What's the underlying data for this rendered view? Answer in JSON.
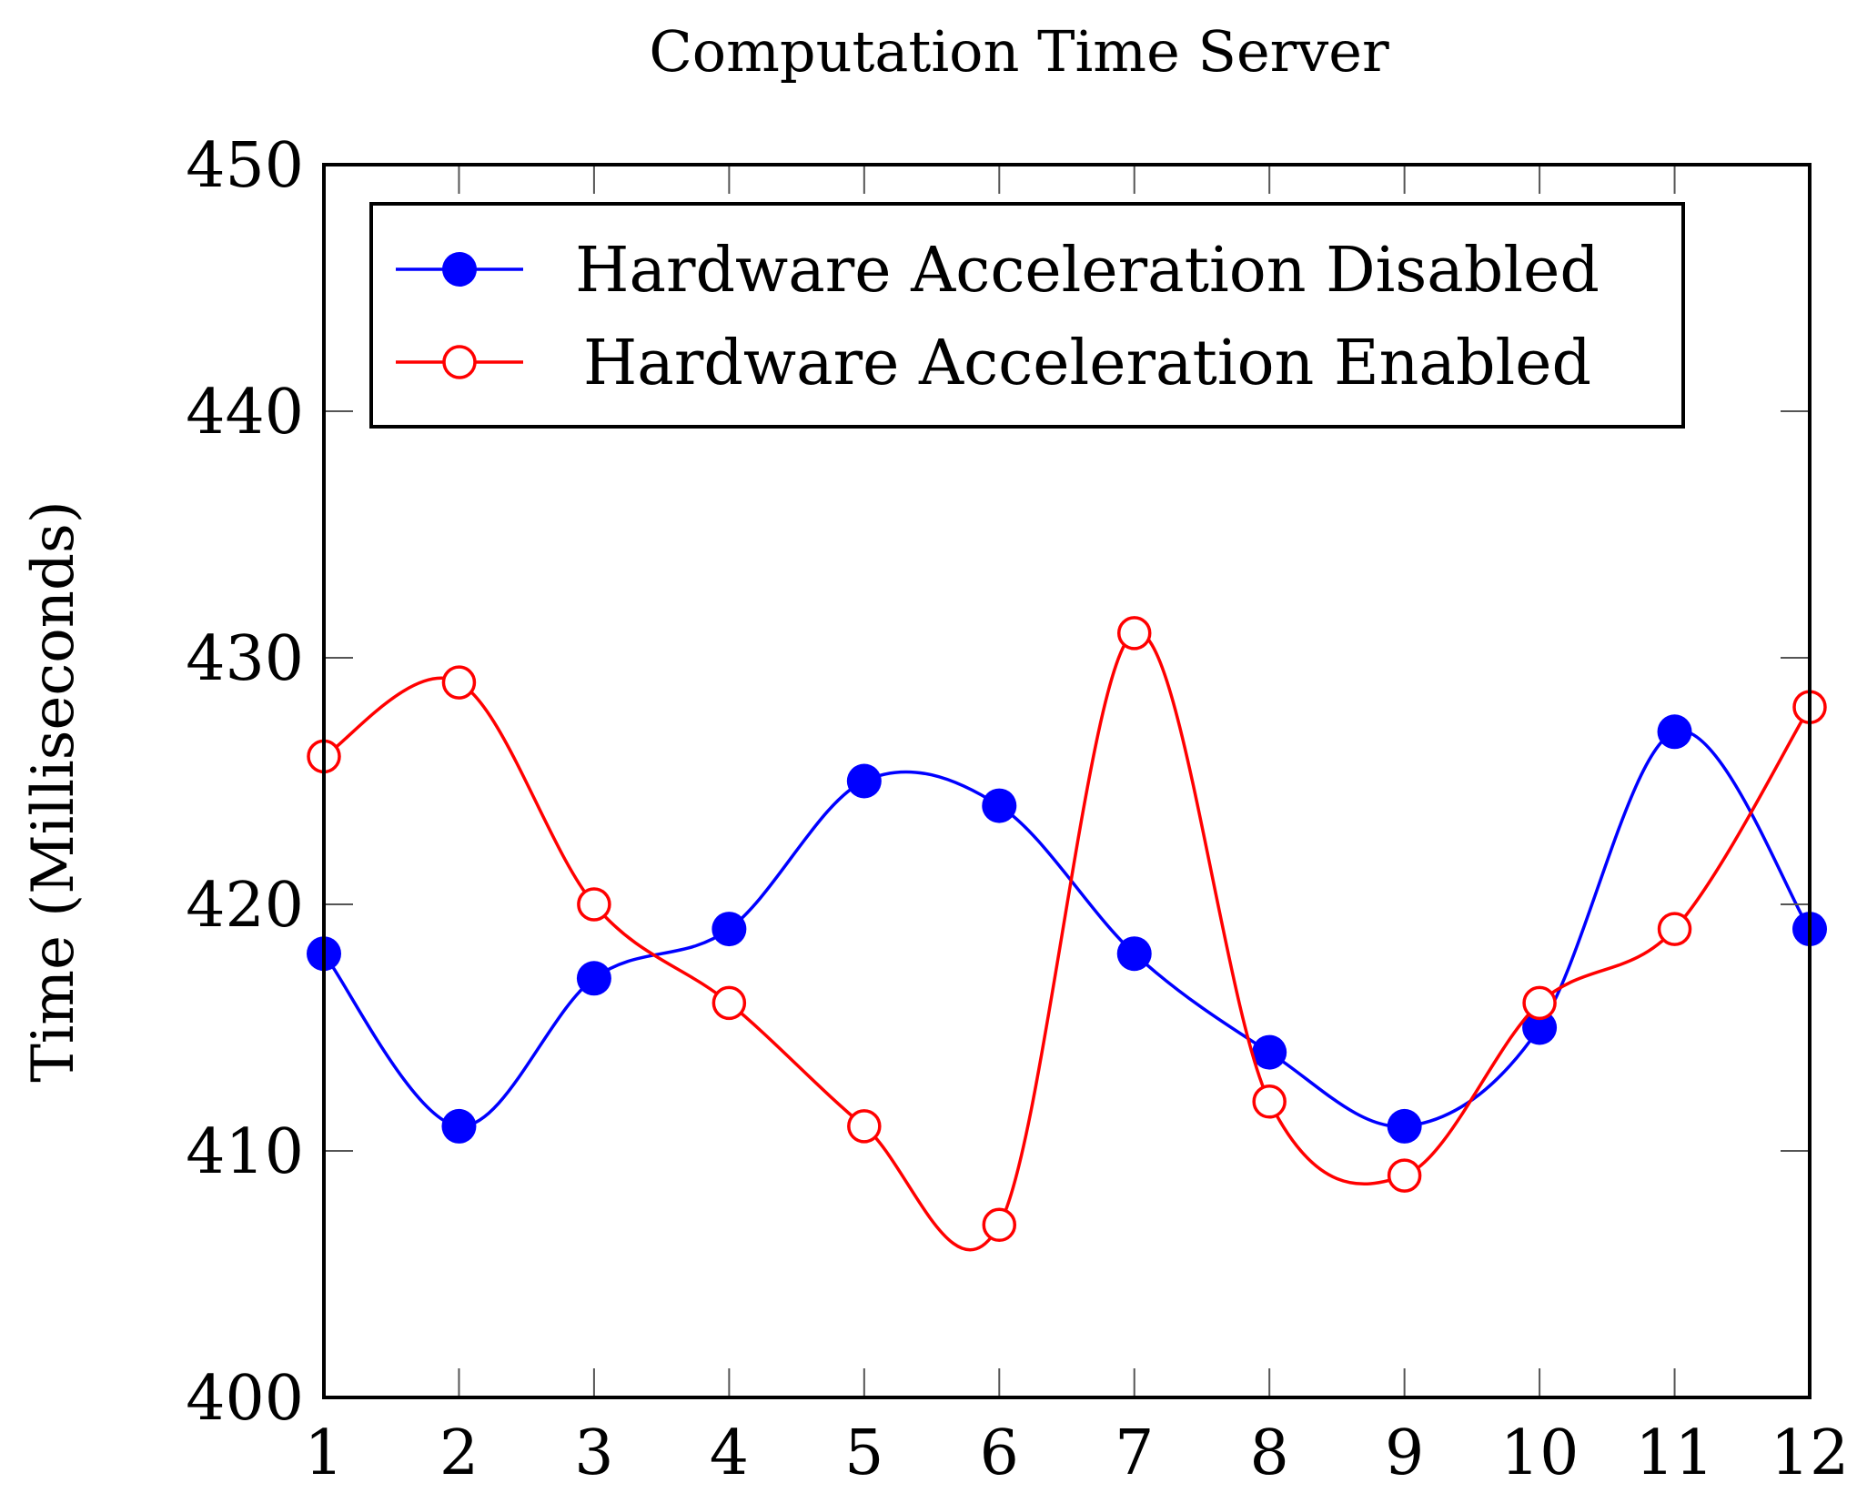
{
  "chart_data": {
    "type": "line",
    "title": "Computation Time Server",
    "xlabel": "",
    "ylabel": "Time (Milliseconds)",
    "x": [
      1,
      2,
      3,
      4,
      5,
      6,
      7,
      8,
      9,
      10,
      11,
      12
    ],
    "xlim": [
      1,
      12
    ],
    "ylim": [
      400,
      450
    ],
    "yticks": [
      400,
      410,
      420,
      430,
      440,
      450
    ],
    "xticks": [
      1,
      2,
      3,
      4,
      5,
      6,
      7,
      8,
      9,
      10,
      11,
      12
    ],
    "grid": false,
    "smooth": true,
    "legend_position": "top-left",
    "series": [
      {
        "name": "Hardware Acceleration Disabled",
        "color": "#0000ff",
        "marker": "filled-circle",
        "values": [
          418,
          411,
          417,
          419,
          425,
          424,
          418,
          414,
          411,
          415,
          427,
          419
        ]
      },
      {
        "name": "Hardware Acceleration Enabled",
        "color": "#ff0000",
        "marker": "open-circle",
        "values": [
          426,
          429,
          420,
          416,
          411,
          407,
          431,
          412,
          409,
          416,
          419,
          428
        ]
      }
    ]
  }
}
